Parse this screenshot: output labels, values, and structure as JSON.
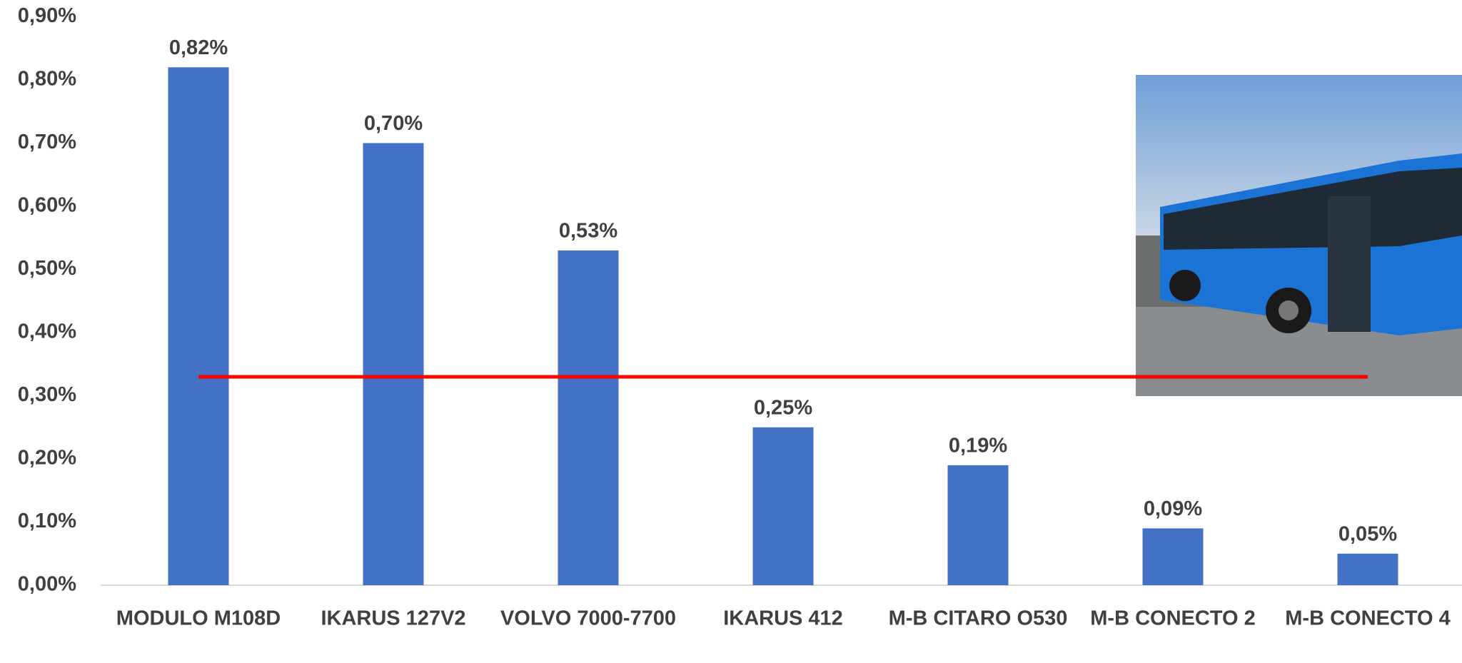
{
  "chart_data": {
    "type": "bar",
    "categories": [
      "MODULO M108D",
      "IKARUS 127V2",
      "VOLVO 7000-7700",
      "IKARUS 412",
      "M-B CITARO O530",
      "M-B CONECTO 2",
      "M-B CONECTO 4"
    ],
    "values": [
      0.82,
      0.7,
      0.53,
      0.25,
      0.19,
      0.09,
      0.05
    ],
    "value_labels": [
      "0,82%",
      "0,70%",
      "0,53%",
      "0,25%",
      "0,19%",
      "0,09%",
      "0,05%"
    ],
    "color": "#4472c4",
    "ylim": [
      0,
      0.9
    ],
    "yticks": [
      {
        "value": 0,
        "label": "0,00%"
      },
      {
        "value": 0.1,
        "label": "0,10%"
      },
      {
        "value": 0.2,
        "label": "0,20%"
      },
      {
        "value": 0.3,
        "label": "0,30%"
      },
      {
        "value": 0.4,
        "label": "0,40%"
      },
      {
        "value": 0.5,
        "label": "0,50%"
      },
      {
        "value": 0.6,
        "label": "0,60%"
      },
      {
        "value": 0.7,
        "label": "0,70%"
      },
      {
        "value": 0.8,
        "label": "0,80%"
      },
      {
        "value": 0.9,
        "label": "0,90%"
      }
    ],
    "grid": false,
    "average_line": {
      "value": 0.33,
      "color": "#ff0000"
    }
  }
}
